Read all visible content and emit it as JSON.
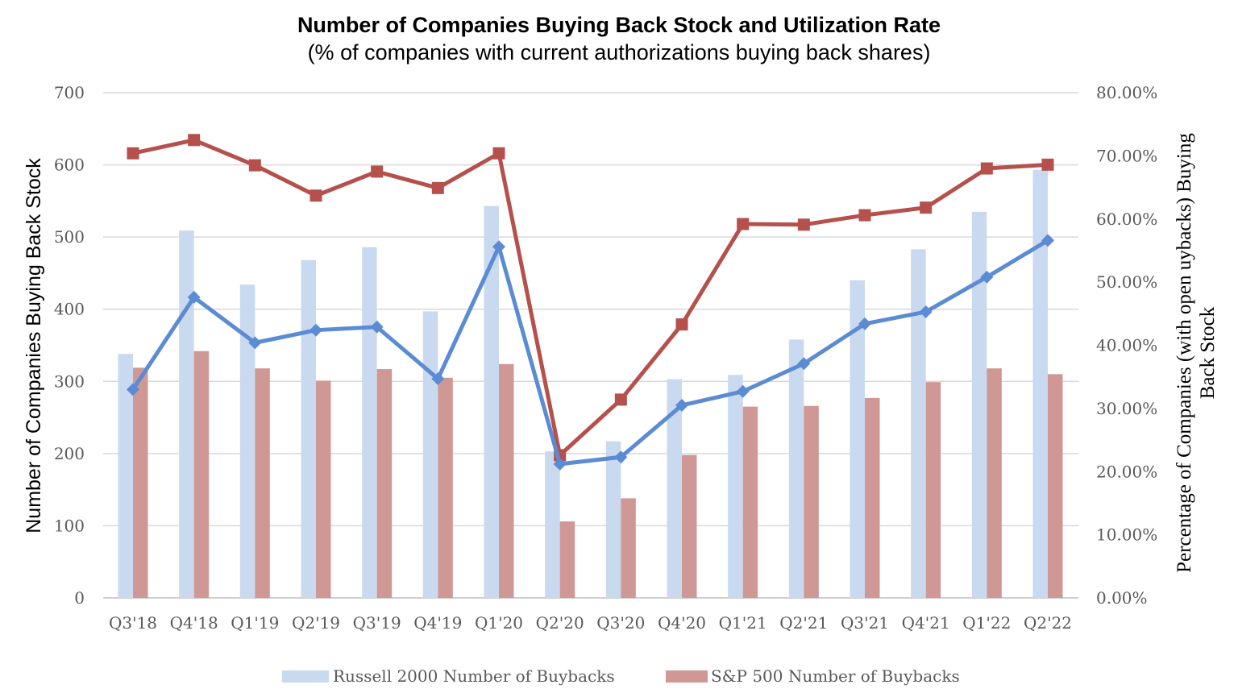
{
  "chart_data": {
    "type": "bar+line",
    "title": "Number of Companies Buying Back Stock and Utilization Rate",
    "subtitle": "(% of companies with current authorizations buying back shares)",
    "ylabel": "Number of Companies Buying Back Stock",
    "ylabel_right": [
      "Percentage of Companies (with open uybacks) Buying",
      "Back Stock"
    ],
    "ylim": [
      0,
      700
    ],
    "yticks": [
      "0",
      "100",
      "200",
      "300",
      "400",
      "500",
      "600",
      "700"
    ],
    "ylim_right": [
      0,
      80
    ],
    "yticks_right": [
      "0.00%",
      "10.00%",
      "20.00%",
      "30.00%",
      "40.00%",
      "50.00%",
      "60.00%",
      "70.00%",
      "80.00%"
    ],
    "grid": true,
    "legend_placement": "bottom",
    "categories": [
      "Q3'18",
      "Q4'18",
      "Q1'19",
      "Q2'19",
      "Q3'19",
      "Q4'19",
      "Q1'20",
      "Q2'20",
      "Q3'20",
      "Q4'20",
      "Q1'21",
      "Q2'21",
      "Q3'21",
      "Q4'21",
      "Q1'22",
      "Q2'22"
    ],
    "series": [
      {
        "name": "Russell 2000 Number of Buybacks",
        "type": "bar",
        "axis": "left",
        "color": "#c9d9f0",
        "values": [
          338,
          509,
          434,
          468,
          486,
          397,
          543,
          203,
          217,
          303,
          309,
          358,
          440,
          483,
          535,
          593
        ]
      },
      {
        "name": "S&P 500 Number of Buybacks",
        "type": "bar",
        "axis": "left",
        "color": "#d09894",
        "values": [
          319,
          342,
          318,
          301,
          317,
          305,
          324,
          106,
          138,
          198,
          265,
          266,
          277,
          299,
          318,
          310
        ]
      },
      {
        "type": "line",
        "axis": "right",
        "color": "#b5504c",
        "marker": "square",
        "values": [
          70.4,
          72.5,
          68.5,
          63.7,
          67.5,
          64.9,
          70.4,
          22.6,
          31.4,
          43.3,
          59.2,
          59.1,
          60.6,
          61.8,
          68.0,
          68.6
        ]
      },
      {
        "type": "line",
        "axis": "right",
        "color": "#5b8bd3",
        "marker": "diamond",
        "values": [
          33.0,
          47.6,
          40.4,
          42.4,
          42.9,
          34.7,
          55.6,
          21.2,
          22.3,
          30.5,
          32.7,
          37.1,
          43.4,
          45.3,
          50.8,
          56.6
        ]
      }
    ]
  }
}
